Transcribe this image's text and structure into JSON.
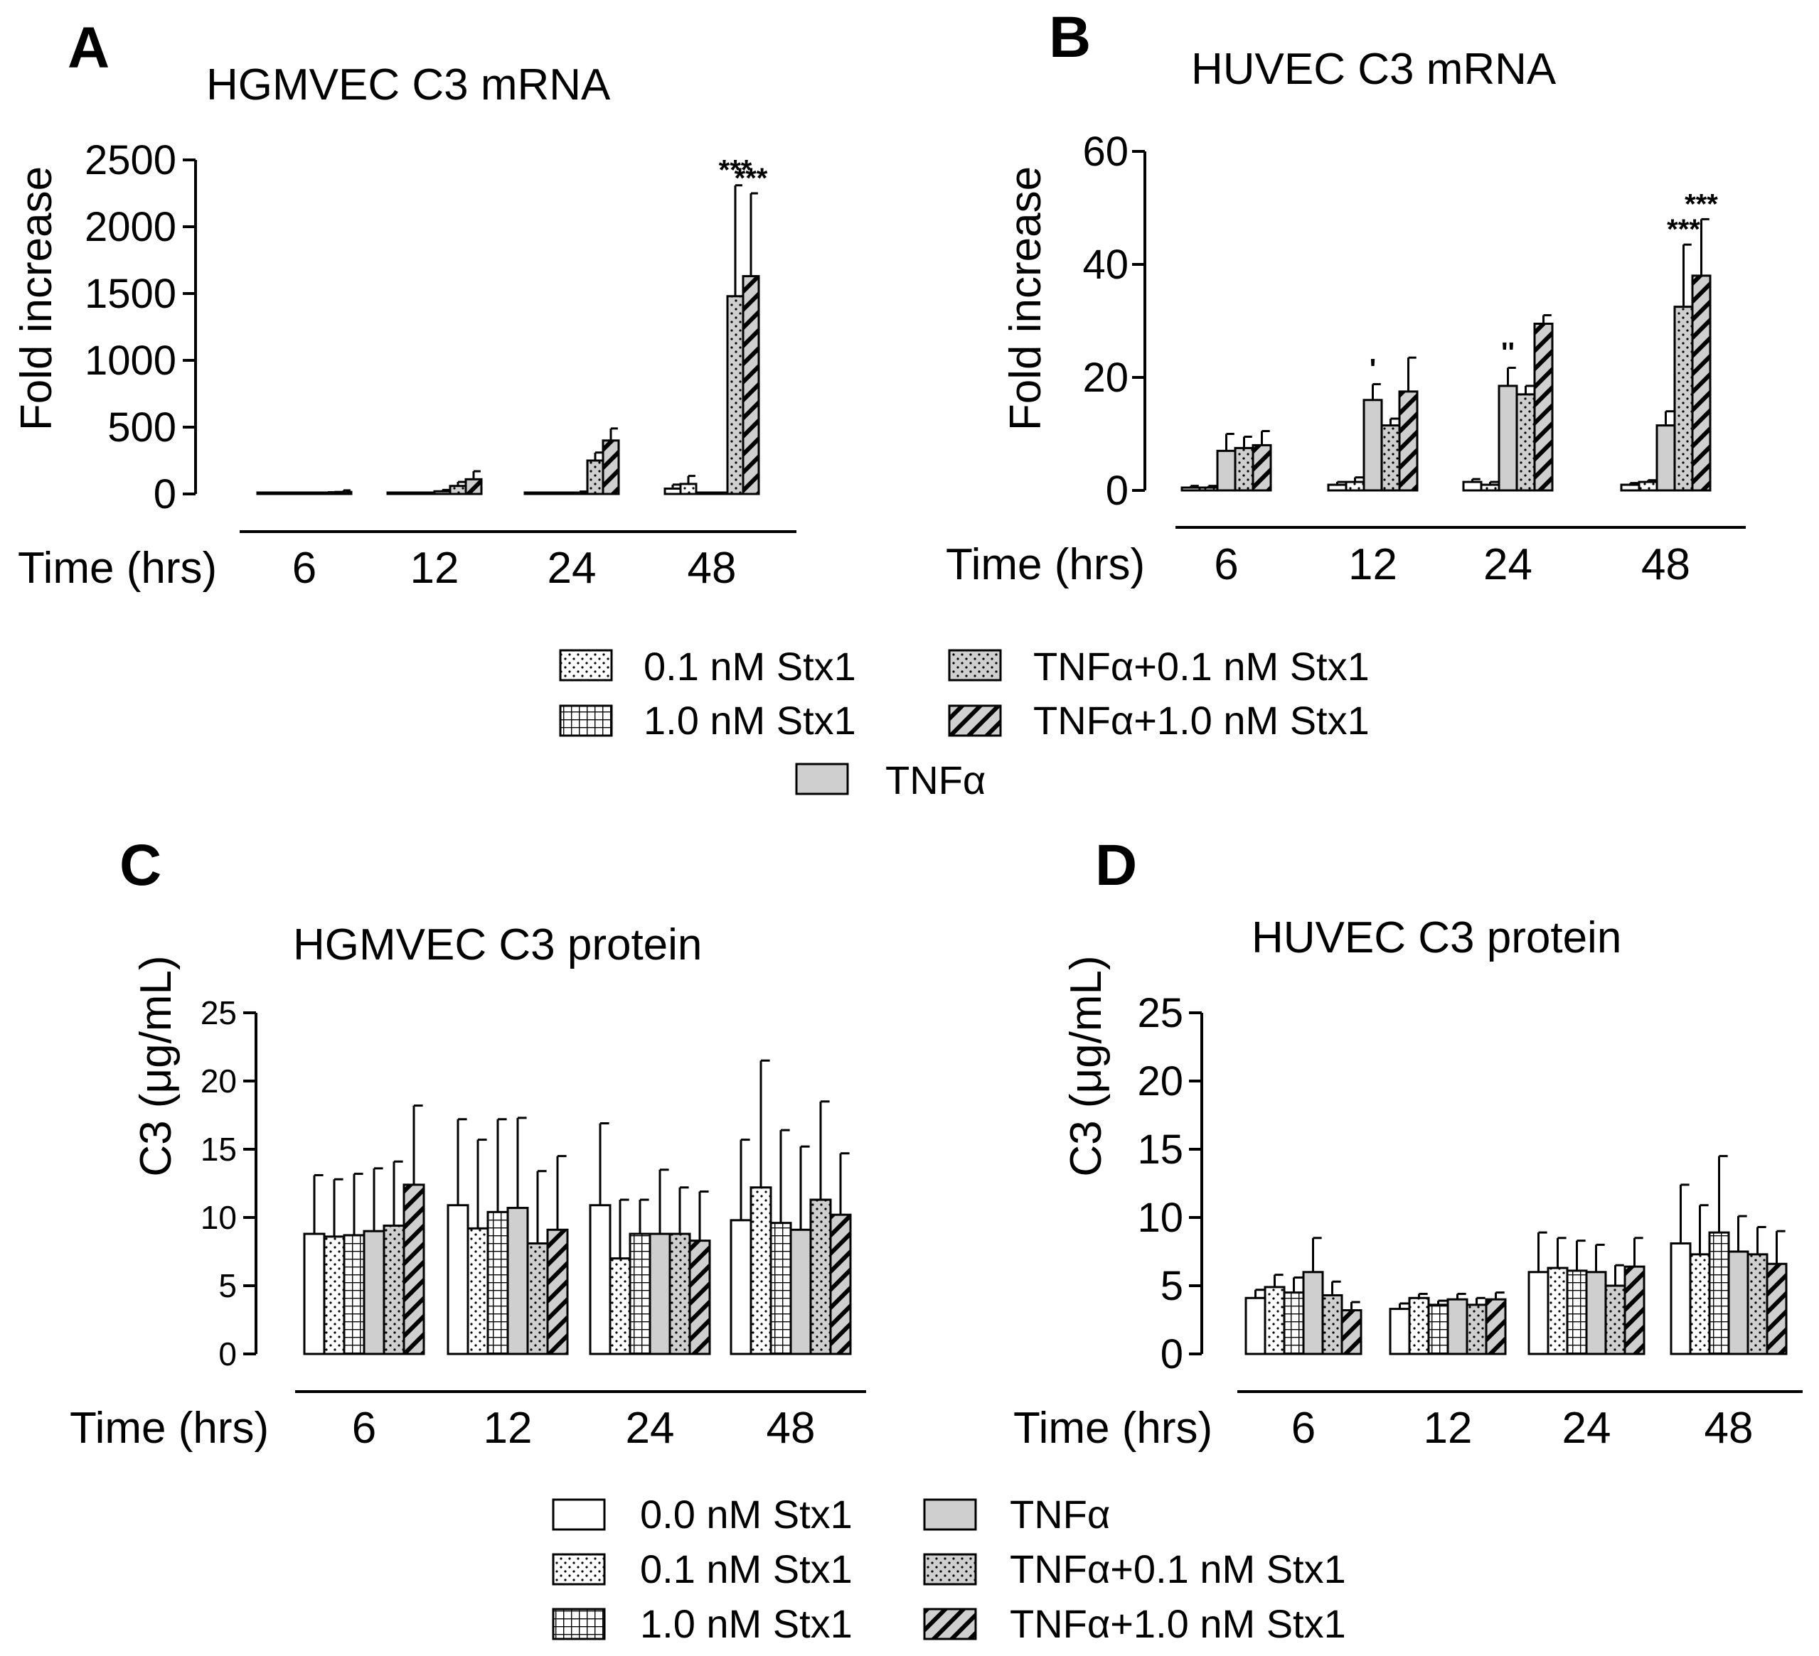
{
  "colors": {
    "black": "#000000",
    "white": "#ffffff",
    "tnf_fill": "#cfcfcf",
    "stx_fill": "#ececec"
  },
  "treatments": [
    {
      "key": "c0",
      "pattern": "white",
      "icon": "open-bar-icon"
    },
    {
      "key": "s01",
      "pattern": "dots",
      "icon": "dotted-bar-icon"
    },
    {
      "key": "s10",
      "pattern": "grid",
      "icon": "grid-bar-icon"
    },
    {
      "key": "tnf",
      "pattern": "gray",
      "icon": "gray-bar-icon"
    },
    {
      "key": "ts01",
      "pattern": "gray-dots",
      "icon": "gray-dotted-bar-icon"
    },
    {
      "key": "ts10",
      "pattern": "gray-hatch",
      "icon": "hatched-bar-icon"
    }
  ],
  "legend_top": {
    "col1": [
      "0.1 nM Stx1",
      "1.0 nM Stx1"
    ],
    "col2": [
      "TNFα+0.1 nM Stx1",
      "TNFα+1.0 nM Stx1"
    ],
    "center": "TNFα"
  },
  "legend_bottom": {
    "col1": [
      "0.0 nM Stx1",
      "0.1 nM Stx1",
      "1.0 nM Stx1"
    ],
    "col2": [
      "TNFα",
      "TNFα+0.1 nM Stx1",
      "TNFα+1.0 nM Stx1"
    ]
  },
  "chart_data": [
    {
      "panel": "A",
      "type": "bar",
      "title": "HGMVEC C3 mRNA",
      "ylabel": "Fold increase",
      "xlabel": "Time (hrs)",
      "categories": [
        "6",
        "12",
        "24",
        "48"
      ],
      "ylim": [
        0,
        2500
      ],
      "yticks": [
        0,
        500,
        1000,
        1500,
        2000,
        2500
      ],
      "series": [
        {
          "name": "0.0 nM Stx1",
          "values": [
            1,
            1,
            1,
            40
          ],
          "errors": [
            3,
            3,
            3,
            30
          ]
        },
        {
          "name": "0.1 nM Stx1",
          "values": [
            1,
            2,
            3,
            75
          ],
          "errors": [
            3,
            5,
            5,
            60
          ]
        },
        {
          "name": "1.0 nM Stx1",
          "values": [
            1,
            3,
            4,
            5
          ],
          "errors": [
            3,
            5,
            6,
            5
          ]
        },
        {
          "name": "TNFα",
          "values": [
            2,
            20,
            10,
            3
          ],
          "errors": [
            5,
            10,
            8,
            3
          ]
        },
        {
          "name": "TNFα+0.1 nM Stx1",
          "values": [
            5,
            60,
            250,
            1480
          ],
          "errors": [
            8,
            30,
            60,
            830
          ]
        },
        {
          "name": "TNFα+1.0 nM Stx1",
          "values": [
            15,
            110,
            400,
            1630
          ],
          "errors": [
            12,
            60,
            90,
            620
          ]
        }
      ],
      "annotations": [
        {
          "category": "48",
          "series": 4,
          "text": "***"
        },
        {
          "category": "48",
          "series": 5,
          "text": "***"
        }
      ]
    },
    {
      "panel": "B",
      "type": "bar",
      "title": "HUVEC C3 mRNA",
      "ylabel": "Fold increase",
      "xlabel": "Time (hrs)",
      "categories": [
        "6",
        "12",
        "24",
        "48"
      ],
      "ylim": [
        0,
        60
      ],
      "yticks": [
        0,
        20,
        40,
        60
      ],
      "series": [
        {
          "name": "0.0 nM Stx1",
          "values": [
            0.5,
            1.0,
            1.5,
            1.0
          ],
          "errors": [
            0.3,
            0.5,
            0.5,
            0.3
          ]
        },
        {
          "name": "0.1 nM Stx1",
          "values": [
            0.5,
            1.5,
            1.0,
            1.5
          ],
          "errors": [
            0.3,
            0.8,
            0.5,
            0.3
          ]
        },
        {
          "name": "TNFα",
          "values": [
            7,
            16,
            18.5,
            11.5
          ],
          "errors": [
            3,
            2.8,
            3.2,
            2.5
          ]
        },
        {
          "name": "TNFα+0.1 nM Stx1",
          "values": [
            7.5,
            11.5,
            17,
            32.5
          ],
          "errors": [
            2,
            1.2,
            1.5,
            11
          ]
        },
        {
          "name": "TNFα+1.0 nM Stx1",
          "values": [
            8,
            17.5,
            29.5,
            38
          ],
          "errors": [
            2.5,
            6,
            1.5,
            10
          ]
        }
      ],
      "annotations": [
        {
          "category": "12",
          "series": 2,
          "text": "'"
        },
        {
          "category": "24",
          "series": 2,
          "text": "''"
        },
        {
          "category": "48",
          "series": 3,
          "text": "***"
        },
        {
          "category": "48",
          "series": 4,
          "text": "***"
        }
      ]
    },
    {
      "panel": "C",
      "type": "bar",
      "title": "HGMVEC C3 protein",
      "ylabel": "C3 (μg/mL)",
      "xlabel": "Time (hrs)",
      "categories": [
        "6",
        "12",
        "24",
        "48"
      ],
      "ylim": [
        0,
        25
      ],
      "yticks": [
        0,
        5,
        10,
        15,
        20,
        25
      ],
      "series": [
        {
          "name": "0.0 nM Stx1",
          "values": [
            8.8,
            10.9,
            10.9,
            9.8
          ],
          "errors": [
            4.3,
            6.3,
            6.0,
            5.9
          ]
        },
        {
          "name": "0.1 nM Stx1",
          "values": [
            8.6,
            9.2,
            7.0,
            12.2
          ],
          "errors": [
            4.2,
            6.5,
            4.3,
            9.3
          ]
        },
        {
          "name": "1.0 nM Stx1",
          "values": [
            8.7,
            10.4,
            8.8,
            9.6
          ],
          "errors": [
            4.5,
            6.8,
            2.5,
            6.8
          ]
        },
        {
          "name": "TNFα",
          "values": [
            9.0,
            10.7,
            8.8,
            9.1
          ],
          "errors": [
            4.6,
            6.6,
            4.7,
            6.1
          ]
        },
        {
          "name": "TNFα+0.1 nM Stx1",
          "values": [
            9.4,
            8.1,
            8.8,
            11.3
          ],
          "errors": [
            4.7,
            5.3,
            3.4,
            7.2
          ]
        },
        {
          "name": "TNFα+1.0 nM Stx1",
          "values": [
            12.4,
            9.1,
            8.3,
            10.2
          ],
          "errors": [
            5.8,
            5.4,
            3.6,
            4.5
          ]
        }
      ]
    },
    {
      "panel": "D",
      "type": "bar",
      "title": "HUVEC C3 protein",
      "ylabel": "C3 (μg/mL)",
      "xlabel": "Time (hrs)",
      "categories": [
        "6",
        "12",
        "24",
        "48"
      ],
      "ylim": [
        0,
        25
      ],
      "yticks": [
        0,
        5,
        10,
        15,
        20,
        25
      ],
      "series": [
        {
          "name": "0.0 nM Stx1",
          "values": [
            4.1,
            3.3,
            6.0,
            8.1
          ],
          "errors": [
            0.6,
            0.4,
            2.9,
            4.3
          ]
        },
        {
          "name": "0.1 nM Stx1",
          "values": [
            4.9,
            4.1,
            6.3,
            7.3
          ],
          "errors": [
            0.9,
            0.3,
            2.2,
            3.6
          ]
        },
        {
          "name": "1.0 nM Stx1",
          "values": [
            4.5,
            3.6,
            6.1,
            8.9
          ],
          "errors": [
            1.1,
            0.3,
            2.2,
            5.6
          ]
        },
        {
          "name": "TNFα",
          "values": [
            6.0,
            4.0,
            6.0,
            7.5
          ],
          "errors": [
            2.5,
            0.4,
            2.0,
            2.6
          ]
        },
        {
          "name": "TNFα+0.1 nM Stx1",
          "values": [
            4.3,
            3.6,
            5.0,
            7.3
          ],
          "errors": [
            1.0,
            0.5,
            1.5,
            2.0
          ]
        },
        {
          "name": "TNFα+1.0 nM Stx1",
          "values": [
            3.2,
            4.0,
            6.4,
            6.6
          ],
          "errors": [
            0.6,
            0.5,
            2.1,
            2.4
          ]
        }
      ]
    }
  ]
}
